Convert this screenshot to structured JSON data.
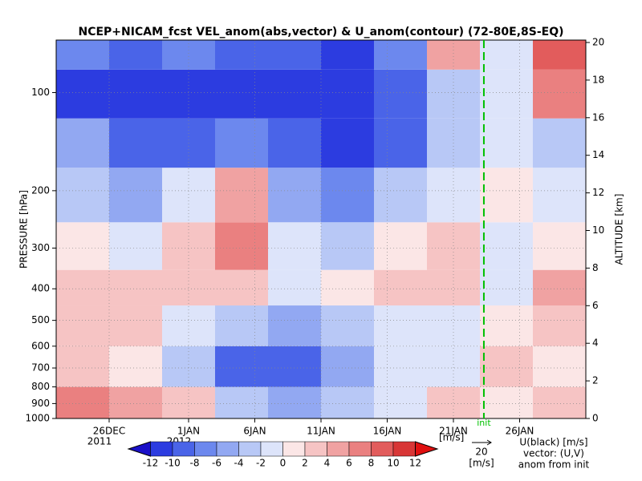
{
  "chart_data": {
    "type": "field",
    "title": "NCEP+NICAM_fcst VEL_anom(abs,vector) & U_anom(contour)   (72-80E,8S-EQ)",
    "ylabel": "PRESSURE [hPa]",
    "y2label": "ALTITUDE [km]",
    "log_y": true,
    "xlim": [
      -4,
      36
    ],
    "ylim": [
      1000,
      69
    ],
    "y2lim": [
      0,
      20
    ],
    "xticks": [
      {
        "value": 0,
        "label": "26DEC",
        "sublabel": "2011"
      },
      {
        "value": 6,
        "label": "1JAN",
        "sublabel": "2012"
      },
      {
        "value": 11,
        "label": "6JAN"
      },
      {
        "value": 16,
        "label": "11JAN"
      },
      {
        "value": 21,
        "label": "16JAN"
      },
      {
        "value": 26,
        "label": "21JAN"
      },
      {
        "value": 31,
        "label": "26JAN"
      }
    ],
    "yticks": [
      100,
      200,
      300,
      400,
      500,
      600,
      700,
      800,
      900,
      1000
    ],
    "y2ticks": [
      0,
      2,
      4,
      6,
      8,
      10,
      12,
      14,
      16,
      18,
      20
    ],
    "grid": true,
    "x_bins": [
      -4,
      0,
      4,
      8,
      12,
      16,
      20,
      24,
      28,
      32,
      36
    ],
    "p_bins": [
      1000,
      800,
      600,
      450,
      350,
      250,
      170,
      120,
      85,
      69
    ],
    "values": [
      [
        6,
        4,
        2,
        -4,
        -6,
        -4,
        -2,
        2,
        0,
        2
      ],
      [
        2,
        0,
        -4,
        -10,
        -10,
        -6,
        -2,
        -2,
        2,
        0
      ],
      [
        2,
        2,
        -2,
        -4,
        -6,
        -4,
        -2,
        -2,
        0,
        2
      ],
      [
        2,
        2,
        2,
        2,
        -2,
        0,
        2,
        2,
        -2,
        4
      ],
      [
        0,
        -2,
        2,
        6,
        -2,
        -4,
        0,
        2,
        -2,
        0
      ],
      [
        -4,
        -6,
        -2,
        4,
        -6,
        -8,
        -4,
        -2,
        0,
        -2
      ],
      [
        -6,
        -10,
        -10,
        -8,
        -10,
        -12,
        -10,
        -4,
        -2,
        -4
      ],
      [
        -12,
        -12,
        -12,
        -12,
        -12,
        -12,
        -10,
        -4,
        -2,
        6
      ],
      [
        -8,
        -10,
        -8,
        -10,
        -10,
        -12,
        -8,
        4,
        -2,
        8
      ]
    ],
    "levels": [
      -12,
      -10,
      -8,
      -6,
      -4,
      -2,
      0,
      2,
      4,
      6,
      8,
      10,
      12
    ],
    "colors": [
      "#1a10c8",
      "#2c3ce0",
      "#4a64e8",
      "#6c88ee",
      "#92a8f2",
      "#b8c8f6",
      "#dde4fa",
      "#fbe6e6",
      "#f6c4c4",
      "#f0a2a2",
      "#ea8080",
      "#e25c5c",
      "#d83636",
      "#e01010"
    ],
    "colorbar_unit": "[m/s]",
    "init_x": 28.3,
    "init_label": "init",
    "init_color": "#00c000",
    "vector_key": {
      "value": 20,
      "unit": "[m/s]"
    },
    "legend_lines": [
      "U(black) [m/s]",
      "vector: (U,V)",
      "anom from init"
    ]
  }
}
